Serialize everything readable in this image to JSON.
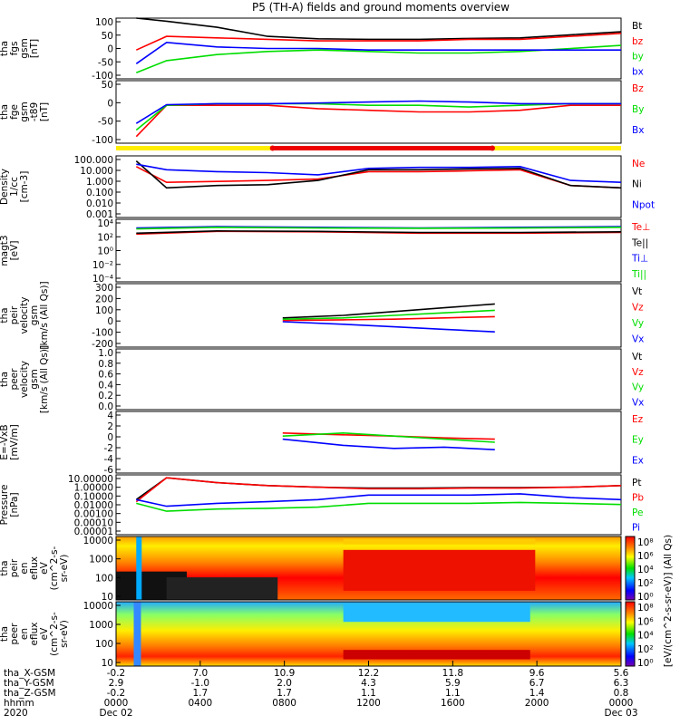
{
  "title": "P5 (TH-A) fields and ground moments overview",
  "colors": {
    "black": "#000000",
    "red": "#ff0000",
    "green": "#00dd00",
    "blue": "#0000ff",
    "yellow": "#ffee00",
    "bar_red": "#ee0000"
  },
  "panels": [
    {
      "id": "fgs",
      "ylabel": [
        "tha",
        "fgs",
        "gsm",
        "[nT]"
      ],
      "ticks": [
        "100",
        "50",
        "0",
        "-50",
        "-100"
      ],
      "legend": [
        {
          "t": "Bt",
          "c": "black"
        },
        {
          "t": "bz",
          "c": "red"
        },
        {
          "t": "by",
          "c": "green"
        },
        {
          "t": "bx",
          "c": "blue"
        }
      ]
    },
    {
      "id": "fge",
      "ylabel": [
        "tha",
        "fge",
        "gsm",
        "-t89",
        "[nT]"
      ],
      "ticks": [
        "50",
        "0",
        "-50",
        "-100"
      ],
      "legend": [
        {
          "t": "Bz",
          "c": "red"
        },
        {
          "t": "By",
          "c": "green"
        },
        {
          "t": "Bx",
          "c": "blue"
        }
      ]
    },
    {
      "id": "density",
      "ylabel": [
        "Density",
        "1/cc",
        "[cm-3]"
      ],
      "ticks": [
        "100.000",
        "10.000",
        "1.000",
        "0.100",
        "0.010",
        "0.001"
      ],
      "legend": [
        {
          "t": "Ne",
          "c": "red"
        },
        {
          "t": "Ni",
          "c": "black"
        },
        {
          "t": "Npot",
          "c": "blue"
        }
      ]
    },
    {
      "id": "temp",
      "ylabel": [
        "magt3",
        "[eV]"
      ],
      "ticks": [
        "10⁴",
        "10²",
        "10⁰",
        "10⁻²",
        "10⁻⁴"
      ],
      "legend": [
        {
          "t": "Te⊥",
          "c": "red"
        },
        {
          "t": "Te||",
          "c": "black"
        },
        {
          "t": "Ti⊥",
          "c": "blue"
        },
        {
          "t": "Ti||",
          "c": "green"
        }
      ]
    },
    {
      "id": "peir_vel",
      "ylabel": [
        "tha",
        "peir",
        "velocity",
        "gsm",
        "[km/s (All Qs)]"
      ],
      "ticks": [
        "300",
        "200",
        "100",
        "0",
        "-100",
        "-200"
      ],
      "legend": [
        {
          "t": "Vt",
          "c": "black"
        },
        {
          "t": "Vz",
          "c": "red"
        },
        {
          "t": "Vy",
          "c": "green"
        },
        {
          "t": "Vx",
          "c": "blue"
        }
      ]
    },
    {
      "id": "peer_vel",
      "ylabel": [
        "tha",
        "peer",
        "velocity",
        "gsm",
        "[km/s (All Qs)]"
      ],
      "ticks": [
        "1.0",
        "0.8",
        "0.6",
        "0.4",
        "0.2",
        "0.0"
      ],
      "legend": [
        {
          "t": "Vt",
          "c": "black"
        },
        {
          "t": "Vz",
          "c": "red"
        },
        {
          "t": "Vy",
          "c": "green"
        },
        {
          "t": "Vx",
          "c": "blue"
        }
      ]
    },
    {
      "id": "efield",
      "ylabel": [
        "E=-VxB",
        "[mV/m]"
      ],
      "ticks": [
        "4",
        "2",
        "0",
        "-2",
        "-4",
        "-6"
      ],
      "legend": [
        {
          "t": "Ez",
          "c": "red"
        },
        {
          "t": "Ey",
          "c": "green"
        },
        {
          "t": "Ex",
          "c": "blue"
        }
      ]
    },
    {
      "id": "pressure",
      "ylabel": [
        "Pressure",
        "[nPa]"
      ],
      "ticks": [
        "10.00000",
        "1.00000",
        "0.10000",
        "0.01000",
        "0.00100",
        "0.00010",
        "0.00001"
      ],
      "legend": [
        {
          "t": "Pt",
          "c": "black"
        },
        {
          "t": "Pb",
          "c": "red"
        },
        {
          "t": "Pe",
          "c": "green"
        },
        {
          "t": "Pi",
          "c": "blue"
        }
      ]
    },
    {
      "id": "peir_eflux",
      "ylabel": [
        "tha",
        "peir",
        "en",
        "eflux",
        "eV",
        "(cm^2-s-",
        "sr-eV)"
      ],
      "ticks": [
        "10000",
        "1000",
        "100",
        "10"
      ],
      "legend": []
    },
    {
      "id": "peer_eflux",
      "ylabel": [
        "tha",
        "peer",
        "en",
        "eflux",
        "eV",
        "(cm^2-s-",
        "sr-eV)"
      ],
      "ticks": [
        "10000",
        "1000",
        "100",
        "10"
      ],
      "legend": []
    }
  ],
  "colorbar": {
    "label": "[eV/(cm^2-s-sr-eV)] (All Qs)",
    "ticks": [
      "10⁸",
      "10⁶",
      "10⁴",
      "10²",
      "10⁰"
    ]
  },
  "xaxis": {
    "rows": [
      {
        "label": "tha_X-GSM",
        "values": [
          "-0.2",
          "7.0",
          "10.9",
          "12.2",
          "11.8",
          "9.6",
          "5.6"
        ]
      },
      {
        "label": "tha_Y-GSM",
        "values": [
          "2.9",
          "-1.0",
          "2.0",
          "4.3",
          "5.9",
          "6.7",
          "6.3"
        ]
      },
      {
        "label": "tha_Z-GSM",
        "values": [
          "-0.2",
          "1.7",
          "1.7",
          "1.1",
          "1.1",
          "1.4",
          "0.8"
        ]
      },
      {
        "label": "hhmm",
        "values": [
          "0000",
          "0400",
          "0800",
          "1200",
          "1600",
          "2000",
          "0000"
        ]
      },
      {
        "label": "2020",
        "values": [
          "Dec 02",
          "",
          "",
          "",
          "",
          "",
          "Dec 03"
        ]
      }
    ]
  },
  "chart_data": [
    {
      "type": "line",
      "title": "tha fgs gsm [nT]",
      "ylim": [
        -100,
        100
      ],
      "series": [
        {
          "name": "Bt",
          "color": "black",
          "x": [
            0.04,
            0.1,
            0.2,
            0.3,
            0.4,
            0.5,
            0.6,
            0.7,
            0.8,
            0.9,
            1.0
          ],
          "values": [
            100,
            90,
            70,
            40,
            32,
            30,
            30,
            33,
            35,
            45,
            55
          ]
        },
        {
          "name": "bz",
          "color": "red",
          "x": [
            0.04,
            0.1,
            0.2,
            0.3,
            0.4,
            0.5,
            0.6,
            0.7,
            0.8,
            0.9,
            1.0
          ],
          "values": [
            -5,
            40,
            35,
            30,
            25,
            25,
            25,
            30,
            30,
            40,
            50
          ]
        },
        {
          "name": "by",
          "color": "green",
          "x": [
            0.04,
            0.1,
            0.2,
            0.3,
            0.4,
            0.5,
            0.6,
            0.7,
            0.8,
            0.9,
            1.0
          ],
          "values": [
            -80,
            -40,
            -20,
            -10,
            -5,
            -10,
            -15,
            -15,
            -10,
            0,
            10
          ]
        },
        {
          "name": "bx",
          "color": "blue",
          "x": [
            0.04,
            0.1,
            0.2,
            0.3,
            0.4,
            0.5,
            0.6,
            0.7,
            0.8,
            0.9,
            1.0
          ],
          "values": [
            -50,
            20,
            5,
            0,
            0,
            -5,
            -5,
            -5,
            -5,
            -5,
            -5
          ]
        }
      ]
    },
    {
      "type": "line",
      "title": "tha fge gsm -t89 [nT]",
      "ylim": [
        -120,
        70
      ],
      "series": [
        {
          "name": "Bz",
          "color": "red",
          "x": [
            0.04,
            0.1,
            0.2,
            0.3,
            0.4,
            0.5,
            0.6,
            0.7,
            0.8,
            0.9,
            1.0
          ],
          "values": [
            -100,
            -5,
            -5,
            -5,
            -15,
            -20,
            -25,
            -25,
            -20,
            -5,
            -5
          ]
        },
        {
          "name": "By",
          "color": "green",
          "x": [
            0.04,
            0.1,
            0.2,
            0.3,
            0.4,
            0.5,
            0.6,
            0.7,
            0.8,
            0.9,
            1.0
          ],
          "values": [
            -80,
            -5,
            0,
            0,
            0,
            -5,
            -5,
            -10,
            -5,
            0,
            0
          ]
        },
        {
          "name": "Bx",
          "color": "blue",
          "x": [
            0.04,
            0.1,
            0.2,
            0.3,
            0.4,
            0.5,
            0.6,
            0.7,
            0.8,
            0.9,
            1.0
          ],
          "values": [
            -60,
            -3,
            0,
            0,
            2,
            5,
            8,
            5,
            0,
            0,
            0
          ]
        }
      ]
    },
    {
      "type": "line",
      "title": "Density 1/cc [cm-3]",
      "yscale": "log",
      "ylim": [
        0.0005,
        300
      ],
      "series": [
        {
          "name": "Ne",
          "color": "red",
          "x": [
            0.04,
            0.1,
            0.2,
            0.3,
            0.4,
            0.5,
            0.6,
            0.7,
            0.8,
            0.9,
            1.0
          ],
          "values": [
            30,
            1,
            1.2,
            1.5,
            2,
            10,
            10,
            12,
            15,
            0.5,
            0.3
          ]
        },
        {
          "name": "Ni",
          "color": "black",
          "x": [
            0.04,
            0.1,
            0.2,
            0.3,
            0.4,
            0.5,
            0.6,
            0.7,
            0.8,
            0.9,
            1.0
          ],
          "values": [
            100,
            0.3,
            0.5,
            0.6,
            1.5,
            15,
            15,
            18,
            20,
            0.5,
            0.3
          ]
        },
        {
          "name": "Npot",
          "color": "blue",
          "x": [
            0.04,
            0.1,
            0.2,
            0.3,
            0.4,
            0.5,
            0.6,
            0.7,
            0.8,
            0.9,
            1.0
          ],
          "values": [
            50,
            15,
            10,
            8,
            5,
            20,
            25,
            25,
            30,
            1.5,
            1
          ]
        }
      ]
    },
    {
      "type": "line",
      "title": "magt3 [eV]",
      "yscale": "log",
      "ylim": [
        0.0001,
        30000
      ],
      "series": [
        {
          "name": "Te⊥",
          "color": "red",
          "x": [
            0.04,
            0.2,
            0.4,
            0.6,
            0.8,
            1.0
          ],
          "values": [
            300,
            700,
            600,
            400,
            400,
            500
          ]
        },
        {
          "name": "Te||",
          "color": "black",
          "x": [
            0.04,
            0.2,
            0.4,
            0.6,
            0.8,
            1.0
          ],
          "values": [
            400,
            800,
            700,
            500,
            500,
            600
          ]
        },
        {
          "name": "Ti⊥",
          "color": "blue",
          "x": [
            0.04,
            0.2,
            0.4,
            0.6,
            0.8,
            1.0
          ],
          "values": [
            2000,
            3000,
            2500,
            2000,
            2500,
            3000
          ]
        },
        {
          "name": "Ti||",
          "color": "green",
          "x": [
            0.04,
            0.2,
            0.4,
            0.6,
            0.8,
            1.0
          ],
          "values": [
            1500,
            2500,
            2000,
            1800,
            2000,
            2500
          ]
        }
      ]
    },
    {
      "type": "line",
      "title": "tha peir velocity gsm [km/s (All Qs)]",
      "ylim": [
        -200,
        300
      ],
      "series": [
        {
          "name": "Vt",
          "color": "black",
          "x": [
            0.33,
            0.45,
            0.55,
            0.65,
            0.75
          ],
          "values": [
            30,
            50,
            80,
            110,
            140
          ]
        },
        {
          "name": "Vz",
          "color": "red",
          "x": [
            0.33,
            0.45,
            0.55,
            0.65,
            0.75
          ],
          "values": [
            10,
            15,
            20,
            30,
            40
          ]
        },
        {
          "name": "Vy",
          "color": "green",
          "x": [
            0.33,
            0.45,
            0.55,
            0.65,
            0.75
          ],
          "values": [
            20,
            30,
            50,
            70,
            90
          ]
        },
        {
          "name": "Vx",
          "color": "blue",
          "x": [
            0.33,
            0.45,
            0.55,
            0.65,
            0.75
          ],
          "values": [
            0,
            -20,
            -40,
            -60,
            -80
          ]
        }
      ]
    },
    {
      "type": "line",
      "title": "tha peer velocity gsm [km/s (All Qs)]",
      "ylim": [
        0,
        1
      ],
      "series": []
    },
    {
      "type": "line",
      "title": "E=-VxB [mV/m]",
      "ylim": [
        -6,
        4
      ],
      "series": [
        {
          "name": "Ez",
          "color": "red",
          "x": [
            0.33,
            0.45,
            0.55,
            0.65,
            0.75
          ],
          "values": [
            0.5,
            0.2,
            0,
            -0.3,
            -0.5
          ]
        },
        {
          "name": "Ey",
          "color": "green",
          "x": [
            0.33,
            0.45,
            0.55,
            0.65,
            0.75
          ],
          "values": [
            0,
            0.5,
            0,
            -0.5,
            -1
          ]
        },
        {
          "name": "Ex",
          "color": "blue",
          "x": [
            0.33,
            0.45,
            0.55,
            0.65,
            0.75
          ],
          "values": [
            -0.5,
            -1.5,
            -2,
            -1.8,
            -2.2
          ]
        }
      ]
    },
    {
      "type": "line",
      "title": "Pressure [nPa]",
      "yscale": "log",
      "ylim": [
        1e-05,
        20
      ],
      "series": [
        {
          "name": "Pt",
          "color": "black",
          "x": [
            0.04,
            0.1,
            0.2,
            0.3,
            0.4,
            0.5,
            0.6,
            0.7,
            0.8,
            0.9,
            1.0
          ],
          "values": [
            0.05,
            10,
            3,
            1.5,
            1,
            0.8,
            0.8,
            0.9,
            0.9,
            1,
            1.5
          ]
        },
        {
          "name": "Pb",
          "color": "red",
          "x": [
            0.04,
            0.1,
            0.2,
            0.3,
            0.4,
            0.5,
            0.6,
            0.7,
            0.8,
            0.9,
            1.0
          ],
          "values": [
            0.03,
            10,
            3,
            1.5,
            1,
            0.7,
            0.7,
            0.8,
            0.8,
            1,
            1.5
          ]
        },
        {
          "name": "Pe",
          "color": "green",
          "x": [
            0.04,
            0.1,
            0.2,
            0.3,
            0.4,
            0.5,
            0.6,
            0.7,
            0.8,
            0.9,
            1.0
          ],
          "values": [
            0.02,
            0.003,
            0.005,
            0.006,
            0.008,
            0.02,
            0.02,
            0.02,
            0.025,
            0.02,
            0.015
          ]
        },
        {
          "name": "Pi",
          "color": "blue",
          "x": [
            0.04,
            0.1,
            0.2,
            0.3,
            0.4,
            0.5,
            0.6,
            0.7,
            0.8,
            0.9,
            1.0
          ],
          "values": [
            0.05,
            0.01,
            0.02,
            0.03,
            0.05,
            0.15,
            0.15,
            0.15,
            0.2,
            0.08,
            0.05
          ]
        }
      ]
    },
    {
      "type": "heatmap",
      "title": "tha peir en eflux eV/(cm^2-s-sr-eV)",
      "yscale": "log",
      "ylim": [
        10,
        20000
      ]
    },
    {
      "type": "heatmap",
      "title": "tha peer en eflux eV/(cm^2-s-sr-eV)",
      "yscale": "log",
      "ylim": [
        5,
        20000
      ]
    }
  ]
}
